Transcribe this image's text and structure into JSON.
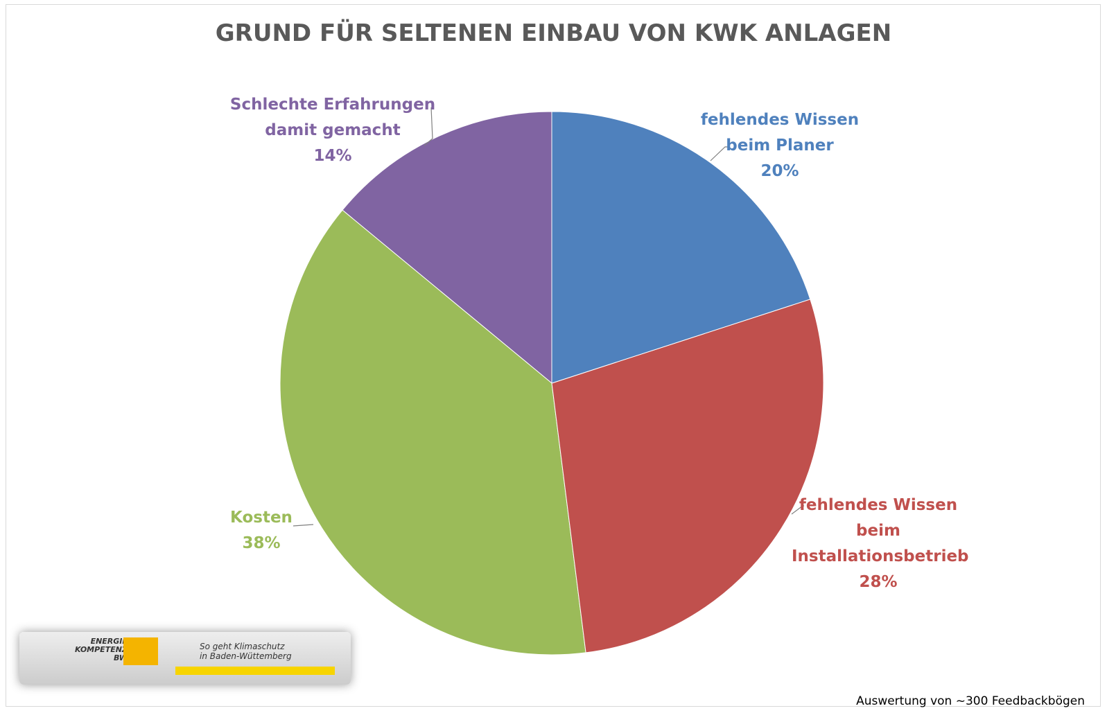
{
  "chart_data": {
    "type": "pie",
    "title": "GRUND FÜR SELTENEN EINBAU VON KWK ANLAGEN",
    "categories": [
      "fehlendes Wissen beim Planer",
      "fehlendes Wissen beim Installationsbetrieb",
      "Kosten",
      "Schlechte Erfahrungen damit gemacht"
    ],
    "values": [
      20,
      28,
      38,
      14
    ],
    "value_labels": [
      "20%",
      "28%",
      "38%",
      "14%"
    ],
    "colors": [
      "#4f81bd",
      "#c0504d",
      "#9bbb59",
      "#8064a2"
    ],
    "footnote": "Auswertung von ~300 Feedbackbögen"
  },
  "logo": {
    "brand": [
      "ENERGIE",
      "KOMPETENZ",
      "BW"
    ],
    "slogan": [
      "So geht Klimaschutz",
      "in Baden-Wüttemberg"
    ]
  }
}
